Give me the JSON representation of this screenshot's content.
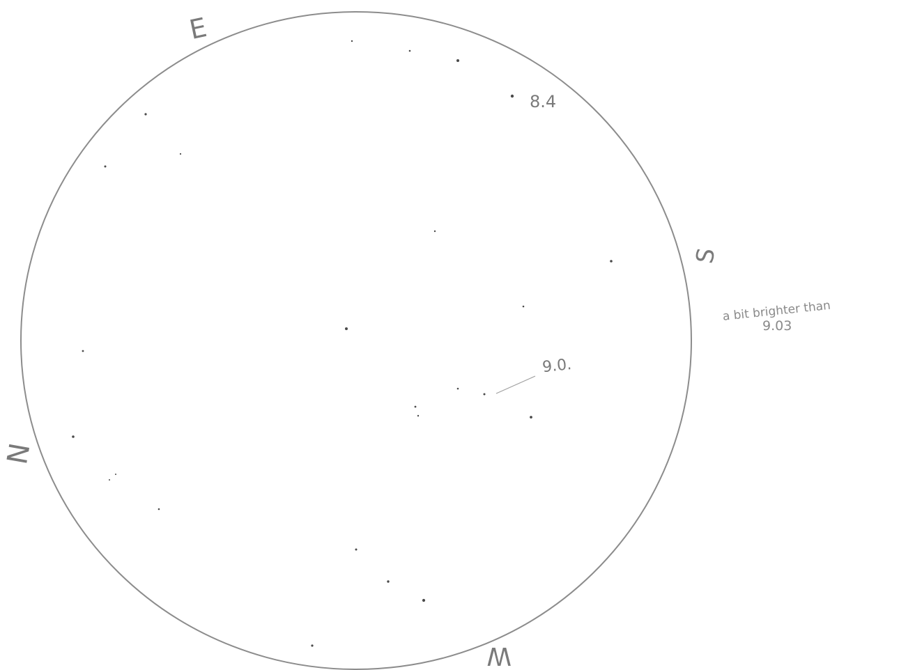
{
  "directions": {
    "east": "E",
    "south": "S",
    "west": "W",
    "north": "N"
  },
  "labels": {
    "mag_84": "8.4",
    "mag_90": "9.0.",
    "note_line1": "a bit brighter than",
    "note_line2": "9.03"
  },
  "colors": {
    "circle": "#8c8c8c",
    "pencil": "#6e6e6e",
    "star": "#4a4a4a"
  }
}
